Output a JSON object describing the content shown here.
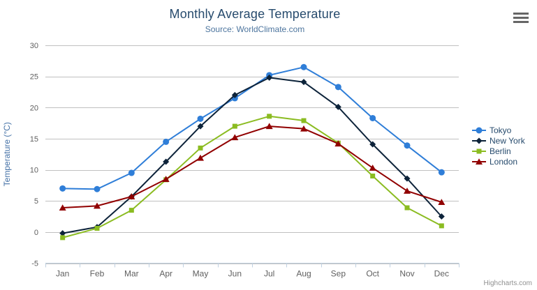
{
  "chart_data": {
    "type": "line",
    "title": "Monthly Average Temperature",
    "subtitle": "Source: WorldClimate.com",
    "xlabel": "",
    "ylabel": "Temperature (°C)",
    "categories": [
      "Jan",
      "Feb",
      "Mar",
      "Apr",
      "May",
      "Jun",
      "Jul",
      "Aug",
      "Sep",
      "Oct",
      "Nov",
      "Dec"
    ],
    "ylim": [
      -5,
      30
    ],
    "yticks": [
      -5,
      0,
      5,
      10,
      15,
      20,
      25,
      30
    ],
    "grid": true,
    "legend_position": "right",
    "series": [
      {
        "name": "Tokyo",
        "color": "#2f7ed8",
        "marker": "circle",
        "values": [
          7.0,
          6.9,
          9.5,
          14.5,
          18.2,
          21.5,
          25.2,
          26.5,
          23.3,
          18.3,
          13.9,
          9.6
        ]
      },
      {
        "name": "New York",
        "color": "#0d233a",
        "marker": "diamond",
        "values": [
          -0.2,
          0.8,
          5.7,
          11.3,
          17.0,
          22.0,
          24.8,
          24.1,
          20.1,
          14.1,
          8.6,
          2.5
        ]
      },
      {
        "name": "Berlin",
        "color": "#8bbc21",
        "marker": "square",
        "values": [
          -0.9,
          0.6,
          3.5,
          8.4,
          13.5,
          17.0,
          18.6,
          17.9,
          14.3,
          9.0,
          3.9,
          1.0
        ]
      },
      {
        "name": "London",
        "color": "#910000",
        "marker": "triangle",
        "values": [
          3.9,
          4.2,
          5.7,
          8.5,
          11.9,
          15.2,
          17.0,
          16.6,
          14.2,
          10.3,
          6.6,
          4.8
        ]
      }
    ]
  },
  "credit": {
    "label": "Highcharts.com"
  },
  "export_menu": {
    "icon": "hamburger-menu-icon"
  },
  "styles": {
    "title_color": "#274b6d",
    "subtitle_color": "#4d759e",
    "axis_label_color": "#606060",
    "yaxis_title_color": "#4572a7",
    "grid_color": "#c0c0c0",
    "axis_line_color": "#c0d0e0",
    "legend_text_color": "#274b6d",
    "credit_color": "#909090"
  }
}
